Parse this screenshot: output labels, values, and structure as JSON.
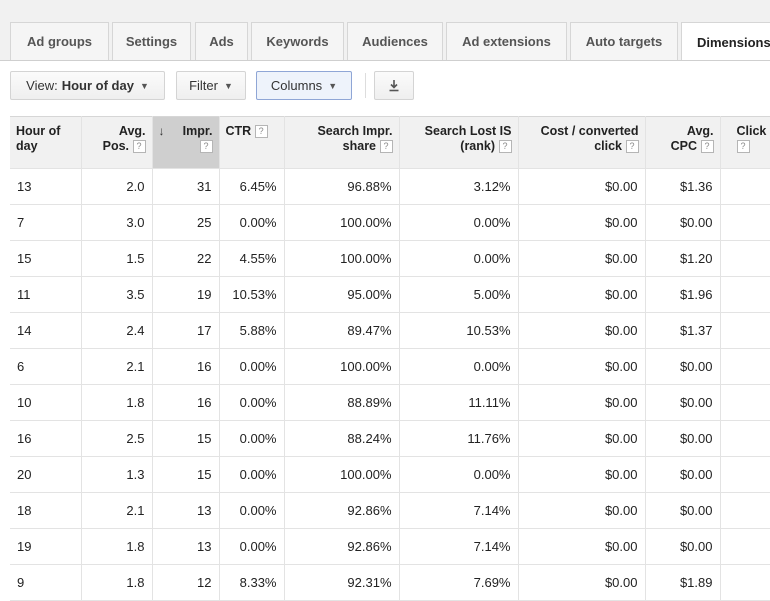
{
  "tabs": [
    {
      "label": "Ad groups"
    },
    {
      "label": "Settings"
    },
    {
      "label": "Ads"
    },
    {
      "label": "Keywords"
    },
    {
      "label": "Audiences"
    },
    {
      "label": "Ad extensions"
    },
    {
      "label": "Auto targets"
    },
    {
      "label": "Dimensions"
    }
  ],
  "toolbar": {
    "view_prefix": "View:",
    "view_value": "Hour of day",
    "filter_label": "Filter",
    "columns_label": "Columns",
    "caret": "▼",
    "download_icon": "download-icon"
  },
  "table": {
    "help_glyph": "?",
    "sort_glyph": "↓",
    "columns": [
      {
        "line1": "Hour of",
        "line2": "day"
      },
      {
        "line1": "Avg.",
        "line2": "Pos."
      },
      {
        "line1": "Impr.",
        "line2": ""
      },
      {
        "line1": "CTR",
        "line2": ""
      },
      {
        "line1": "Search Impr.",
        "line2": "share"
      },
      {
        "line1": "Search Lost IS",
        "line2": "(rank)"
      },
      {
        "line1": "Cost / converted",
        "line2": "click"
      },
      {
        "line1": "Avg.",
        "line2": "CPC"
      },
      {
        "line1": "Click",
        "line2": ""
      }
    ],
    "rows": [
      [
        "13",
        "2.0",
        "31",
        "6.45%",
        "96.88%",
        "3.12%",
        "$0.00",
        "$1.36",
        ""
      ],
      [
        "7",
        "3.0",
        "25",
        "0.00%",
        "100.00%",
        "0.00%",
        "$0.00",
        "$0.00",
        ""
      ],
      [
        "15",
        "1.5",
        "22",
        "4.55%",
        "100.00%",
        "0.00%",
        "$0.00",
        "$1.20",
        ""
      ],
      [
        "11",
        "3.5",
        "19",
        "10.53%",
        "95.00%",
        "5.00%",
        "$0.00",
        "$1.96",
        ""
      ],
      [
        "14",
        "2.4",
        "17",
        "5.88%",
        "89.47%",
        "10.53%",
        "$0.00",
        "$1.37",
        ""
      ],
      [
        "6",
        "2.1",
        "16",
        "0.00%",
        "100.00%",
        "0.00%",
        "$0.00",
        "$0.00",
        ""
      ],
      [
        "10",
        "1.8",
        "16",
        "0.00%",
        "88.89%",
        "11.11%",
        "$0.00",
        "$0.00",
        ""
      ],
      [
        "16",
        "2.5",
        "15",
        "0.00%",
        "88.24%",
        "11.76%",
        "$0.00",
        "$0.00",
        ""
      ],
      [
        "20",
        "1.3",
        "15",
        "0.00%",
        "100.00%",
        "0.00%",
        "$0.00",
        "$0.00",
        ""
      ],
      [
        "18",
        "2.1",
        "13",
        "0.00%",
        "92.86%",
        "7.14%",
        "$0.00",
        "$0.00",
        ""
      ],
      [
        "19",
        "1.8",
        "13",
        "0.00%",
        "92.86%",
        "7.14%",
        "$0.00",
        "$0.00",
        ""
      ],
      [
        "9",
        "1.8",
        "12",
        "8.33%",
        "92.31%",
        "7.69%",
        "$0.00",
        "$1.89",
        ""
      ]
    ]
  }
}
